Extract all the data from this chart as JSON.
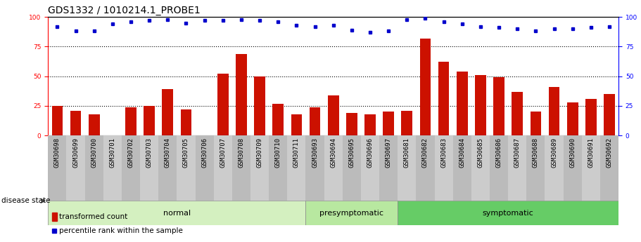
{
  "title": "GDS1332 / 1010214.1_PROBE1",
  "samples": [
    "GSM30698",
    "GSM30699",
    "GSM30700",
    "GSM30701",
    "GSM30702",
    "GSM30703",
    "GSM30704",
    "GSM30705",
    "GSM30706",
    "GSM30707",
    "GSM30708",
    "GSM30709",
    "GSM30710",
    "GSM30711",
    "GSM30693",
    "GSM30694",
    "GSM30695",
    "GSM30696",
    "GSM30697",
    "GSM30681",
    "GSM30682",
    "GSM30683",
    "GSM30684",
    "GSM30685",
    "GSM30686",
    "GSM30687",
    "GSM30688",
    "GSM30689",
    "GSM30690",
    "GSM30691",
    "GSM30692"
  ],
  "bar_values": [
    25,
    21,
    18,
    0,
    24,
    25,
    39,
    22,
    0,
    52,
    69,
    50,
    27,
    18,
    24,
    34,
    19,
    18,
    20,
    21,
    82,
    62,
    54,
    51,
    49,
    37,
    20,
    41,
    28,
    31,
    35
  ],
  "percentile_values": [
    92,
    88,
    88,
    94,
    96,
    97,
    98,
    95,
    97,
    97,
    98,
    97,
    96,
    93,
    92,
    93,
    89,
    87,
    88,
    98,
    99,
    96,
    94,
    92,
    91,
    90,
    88,
    90,
    90,
    91,
    92
  ],
  "groups": [
    {
      "label": "normal",
      "start": 0,
      "end": 13,
      "color": "#d4f0c0"
    },
    {
      "label": "presymptomatic",
      "start": 14,
      "end": 18,
      "color": "#b8e8a0"
    },
    {
      "label": "symptomatic",
      "start": 19,
      "end": 30,
      "color": "#66cc66"
    }
  ],
  "bar_color": "#cc1100",
  "dot_color": "#0000cc",
  "ylim": [
    0,
    100
  ],
  "grid_lines": [
    25,
    50,
    75
  ],
  "disease_state_label": "disease state",
  "legend_bar": "transformed count",
  "legend_dot": "percentile rank within the sample",
  "bar_width": 0.6,
  "title_fontsize": 10,
  "tick_fontsize": 6.5,
  "group_fontsize": 8
}
